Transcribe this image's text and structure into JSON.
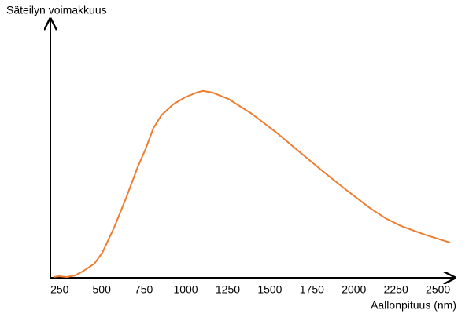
{
  "chart_data": {
    "type": "line",
    "ylabel": "Säteilyn voimakkuus",
    "xlabel": "Aallonpituus (nm)",
    "x": [
      214,
      246,
      293,
      340,
      387,
      457,
      504,
      574,
      644,
      714,
      761,
      808,
      855,
      925,
      995,
      1065,
      1103,
      1159,
      1253,
      1393,
      1533,
      1674,
      1814,
      1954,
      2095,
      2188,
      2282,
      2422,
      2572
    ],
    "series": [
      {
        "color": "#ed7d31",
        "values": [
          0,
          0.3,
          0,
          0.6,
          2.2,
          5.3,
          9.6,
          19.5,
          31,
          43.3,
          50.5,
          58.8,
          63.8,
          68.1,
          70.9,
          72.8,
          73.4,
          72.8,
          70.3,
          64.4,
          57.3,
          49.5,
          41.8,
          34.4,
          27.2,
          23.2,
          20.1,
          16.7,
          13.6
        ]
      }
    ],
    "xlim": [
      195,
      2600
    ],
    "xticks": [
      250,
      500,
      750,
      1000,
      1250,
      1500,
      1750,
      2000,
      2250,
      2500
    ],
    "ylim": [
      0,
      100
    ]
  }
}
